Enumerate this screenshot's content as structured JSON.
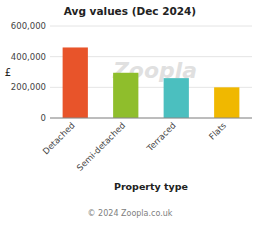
{
  "chart_data": {
    "type": "bar",
    "title": "Avg values (Dec 2024)",
    "categories": [
      "Detached",
      "Semi-detached",
      "Terraced",
      "Flats"
    ],
    "values": [
      460000,
      295000,
      260000,
      200000
    ],
    "colors": [
      "#e8542a",
      "#8fbe2c",
      "#4bbfbf",
      "#f0b800"
    ],
    "ylabel": "£",
    "xlabel": "Property type",
    "ylim": [
      0,
      600000
    ],
    "yticks": [
      0,
      {
        "value": 200000,
        "label": "200,000"
      },
      {
        "value": 400000,
        "label": "400,000"
      },
      {
        "value": 600000,
        "label": "600,000"
      }
    ],
    "grid": true,
    "annotations": [
      "Zoopla",
      "© 2024 Zoopla.co.uk"
    ]
  }
}
